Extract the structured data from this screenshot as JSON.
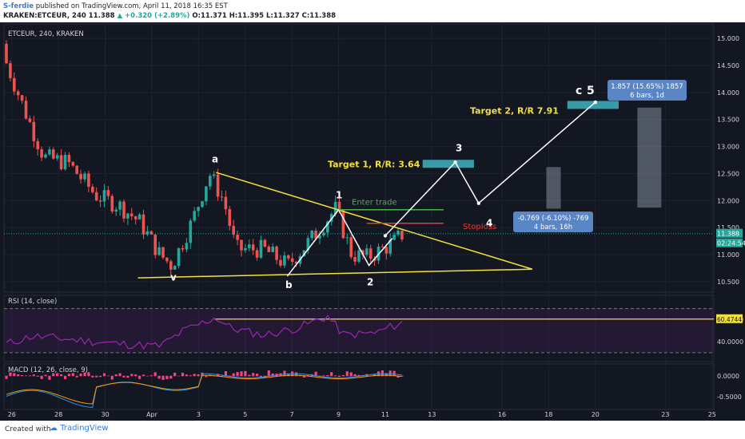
{
  "header": {
    "author": "S-ferdie",
    "published": "published on TradingView.com, April 11, 2018 16:35 EST",
    "symbol_line_prefix": "KRAKEN:ETCEUR, 240",
    "price": "11.388",
    "change": "▲ +0.320 (+2.89%)",
    "ohlc": "O:11.371 H:11.395 L:11.327 C:11.388"
  },
  "footer": {
    "created_with": "Created with",
    "brand": "TradingView"
  },
  "chart_data": [
    {
      "type": "line",
      "title": "ETCEUR, 240, KRAKEN",
      "y_ticks": [
        "15.000",
        "14.500",
        "14.000",
        "13.500",
        "13.000",
        "12.500",
        "12.000",
        "11.500",
        "11.000",
        "10.500"
      ],
      "ylim": [
        10.35,
        15.15
      ],
      "current_price_label": "11.388",
      "countdown_label": "02:24:54",
      "x_ticks": [
        "26",
        "28",
        "30",
        "Apr",
        "3",
        "5",
        "7",
        "9",
        "11",
        "13",
        "16",
        "18",
        "20",
        "23",
        "25"
      ],
      "wave_labels": {
        "v": "v",
        "a": "a",
        "b": "b",
        "w1": "1",
        "w2": "2",
        "w3": "3",
        "w4": "4",
        "c": "c",
        "w5": "5"
      },
      "annotations": {
        "target1": "Target 1, R/R: 3.64",
        "target2": "Target 2, R/R 7.91",
        "enter": "Enter trade",
        "stop": "Stoploss",
        "box_up_line1": "1.857 (15.65%) 1857",
        "box_up_line2": "6 bars, 1d",
        "box_down_line1": "-0.769 (-6.10%) -769",
        "box_down_line2": "4 bars, 16h"
      },
      "levels": {
        "enter": 11.83,
        "stop": 11.58,
        "target1": 12.68,
        "target2": 13.77
      },
      "triangle": {
        "upper_start": 12.52,
        "apex": 10.73,
        "lower_start": 10.57
      },
      "projection": [
        {
          "x": "Apr 11",
          "y": 11.35
        },
        {
          "x": "Apr 14",
          "y": 12.71
        },
        {
          "x": "Apr 15",
          "y": 11.95
        },
        {
          "x": "Apr 20",
          "y": 13.82
        }
      ],
      "colors": {
        "bg": "#131722",
        "up": "#26a69a",
        "down": "#ef5350",
        "triangle": "#f3e139",
        "target": "#3a9ba8",
        "enter": "#4caf50",
        "stop": "#e53935",
        "projection": "#ffffff",
        "rsi": "#9c27b0",
        "macd_hist": "#ff4081"
      }
    },
    {
      "type": "line",
      "title": "RSI (14, close)",
      "y_ticks": [
        "60.0000",
        "40.0000"
      ],
      "ylim": [
        22,
        82
      ],
      "value_label": "60.4744",
      "level": 60.47
    },
    {
      "type": "bar",
      "title": "MACD (12, 26, close, 9)",
      "y_ticks": [
        "0.0000",
        "-0.5000"
      ],
      "ylim": [
        -0.8,
        0.28
      ]
    }
  ]
}
